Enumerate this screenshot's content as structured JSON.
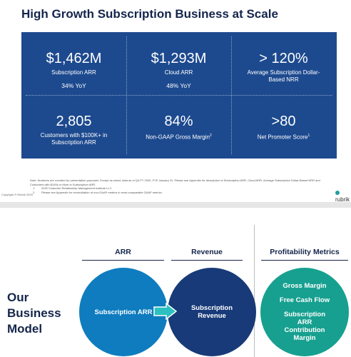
{
  "slide1": {
    "title": "High Growth Subscription Business at Scale",
    "metrics": [
      {
        "value": "$1,462M",
        "label": "Subscription ARR",
        "detail": "34% YoY"
      },
      {
        "value": "$1,293M",
        "label": "Cloud ARR",
        "detail": "48% YoY"
      },
      {
        "value": "> 120%",
        "label": "Average Subscription Dollar-Based NRR"
      },
      {
        "value": "2,805",
        "label": "Customers with $100K+ in Subscription ARR"
      },
      {
        "value": "84%",
        "label": "Non-GAAP Gross Margin",
        "footnote_ref": "2"
      },
      {
        "value": ">80",
        "label": "Net Promoter Score",
        "footnote_ref": "1"
      }
    ],
    "note": "Note: Numbers are rounded for presentation purposes. Except as noted, data as of Q4 FY 2020, FYE January 31. Please see Appendix for description of Subscription ARR, Cloud ARR, Average Subscription Dollar-Based NRR and Customers with $100k or More in Subscription ARR.",
    "footnotes": [
      {
        "number": "1.",
        "text": "2020 Customer Relationship Management Institute LLC"
      },
      {
        "number": "2.",
        "text": "Please see Appendix for reconciliation of non-GAAP metrics to most comparable GAAP metrics."
      }
    ],
    "copyright": "Copyright © Rubrik 2020",
    "logo": "rubrik"
  },
  "slide2": {
    "title": "Our Business Model",
    "arr": {
      "heading": "ARR",
      "circle": "Subscription ARR"
    },
    "revenue": {
      "heading": "Revenue",
      "circle": "Subscription Revenue"
    },
    "profitability": {
      "heading": "Profitability Metrics",
      "items": [
        "Gross Margin",
        "Free Cash Flow",
        "Subscription ARR Contribution Margin"
      ]
    }
  }
}
